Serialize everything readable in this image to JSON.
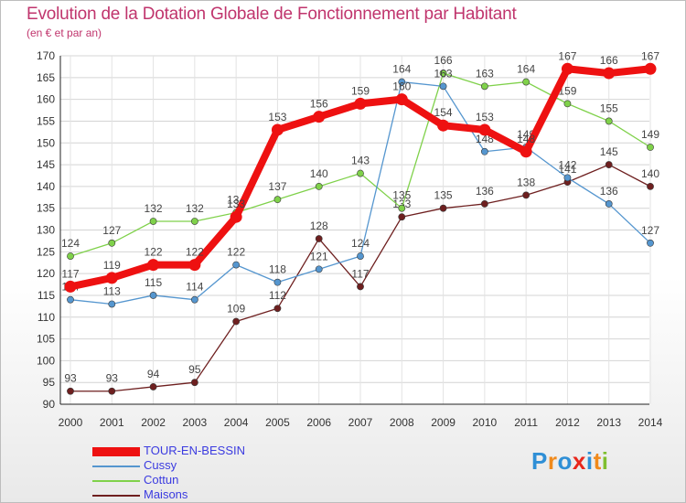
{
  "chart_data": {
    "type": "line",
    "title": "Evolution de la Dotation Globale de Fonctionnement par Habitant",
    "subtitle": "(en € et par an)",
    "xlabel": "",
    "ylabel": "",
    "x": [
      "2000",
      "2001",
      "2002",
      "2003",
      "2004",
      "2005",
      "2006",
      "2007",
      "2008",
      "2009",
      "2010",
      "2011",
      "2012",
      "2013",
      "2014"
    ],
    "ylim": [
      90,
      170
    ],
    "yticks": [
      90,
      95,
      100,
      105,
      110,
      115,
      120,
      125,
      130,
      135,
      140,
      145,
      150,
      155,
      160,
      165,
      170
    ],
    "legend_position": "bottom-left",
    "series": [
      {
        "name": "TOUR-EN-BESSIN",
        "color": "#ee1111",
        "values": [
          117,
          119,
          122,
          122,
          133,
          153,
          156,
          159,
          160,
          154,
          153,
          148,
          167,
          166,
          167
        ]
      },
      {
        "name": "Cussy",
        "color": "#5596cf",
        "values": [
          114,
          113,
          115,
          114,
          122,
          118,
          121,
          124,
          164,
          163,
          148,
          149,
          142,
          136,
          127
        ]
      },
      {
        "name": "Cottun",
        "color": "#7fd14a",
        "values": [
          124,
          127,
          132,
          132,
          134,
          137,
          140,
          143,
          135,
          166,
          163,
          164,
          159,
          155,
          149
        ]
      },
      {
        "name": "Maisons",
        "color": "#6e1f1f",
        "values": [
          93,
          93,
          94,
          95,
          109,
          112,
          128,
          117,
          133,
          135,
          136,
          138,
          141,
          145,
          140
        ]
      }
    ]
  },
  "logo": {
    "letters": [
      "P",
      "r",
      "o",
      "x",
      "i",
      "t",
      "i"
    ],
    "colors": [
      "#2f8fd6",
      "#f08a1c",
      "#2f8fd6",
      "#e8271c",
      "#2f8fd6",
      "#f08a1c",
      "#7fbf2f"
    ]
  }
}
